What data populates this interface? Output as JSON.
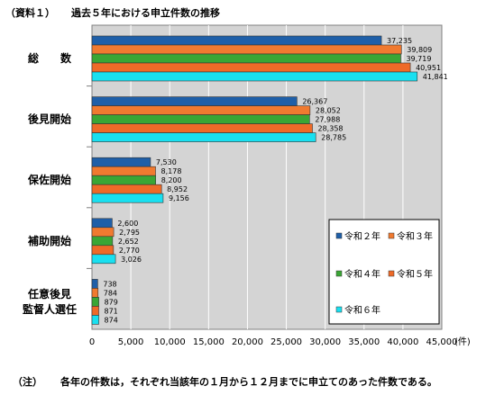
{
  "heading": {
    "tag": "（資料１）",
    "title": "過去５年における申立件数の推移"
  },
  "footnote": {
    "tag": "（注）",
    "text": "各年の件数は，それぞれ当該年の１月から１２月までに申立てのあった件数である。"
  },
  "chart_data": {
    "type": "bar",
    "orientation": "horizontal",
    "title": "過去５年における申立件数の推移",
    "categories": [
      {
        "lines": [
          "総　　数"
        ]
      },
      {
        "lines": [
          "後見開始"
        ]
      },
      {
        "lines": [
          "保佐開始"
        ]
      },
      {
        "lines": [
          "補助開始"
        ]
      },
      {
        "lines": [
          "任意後見",
          "監督人選任"
        ]
      }
    ],
    "series": [
      {
        "name": "令和２年",
        "color": "#1f5fa8",
        "values": [
          37235,
          26367,
          7530,
          2600,
          738
        ]
      },
      {
        "name": "令和３年",
        "color": "#f07a30",
        "values": [
          39809,
          28052,
          8178,
          2795,
          784
        ]
      },
      {
        "name": "令和４年",
        "color": "#3aa635",
        "values": [
          39719,
          27988,
          8200,
          2652,
          879
        ]
      },
      {
        "name": "令和５年",
        "color": "#ee6a28",
        "values": [
          40951,
          28358,
          8952,
          2770,
          871
        ]
      },
      {
        "name": "令和６年",
        "color": "#19e0f0",
        "values": [
          41841,
          28785,
          9156,
          3026,
          874
        ]
      }
    ],
    "value_labels": [
      [
        "37,235",
        "39,809",
        "39,719",
        "40,951",
        "41,841"
      ],
      [
        "26,367",
        "28,052",
        "27,988",
        "28,358",
        "28,785"
      ],
      [
        "7,530",
        "8,178",
        "8,200",
        "8,952",
        "9,156"
      ],
      [
        "2,600",
        "2,795",
        "2,652",
        "2,770",
        "3,026"
      ],
      [
        "738",
        "784",
        "879",
        "871",
        "874"
      ]
    ],
    "xlim": [
      0,
      45000
    ],
    "xticks": [
      0,
      5000,
      10000,
      15000,
      20000,
      25000,
      30000,
      35000,
      40000,
      45000
    ],
    "xtick_labels": [
      "0",
      "5,000",
      "10,000",
      "15,000",
      "20,000",
      "25,000",
      "30,000",
      "35,000",
      "40,000",
      "45,000"
    ],
    "unit_label": "(件)",
    "grid": true,
    "plot_background": "#d4d4d4",
    "legend_position": "inside-lower-right"
  }
}
